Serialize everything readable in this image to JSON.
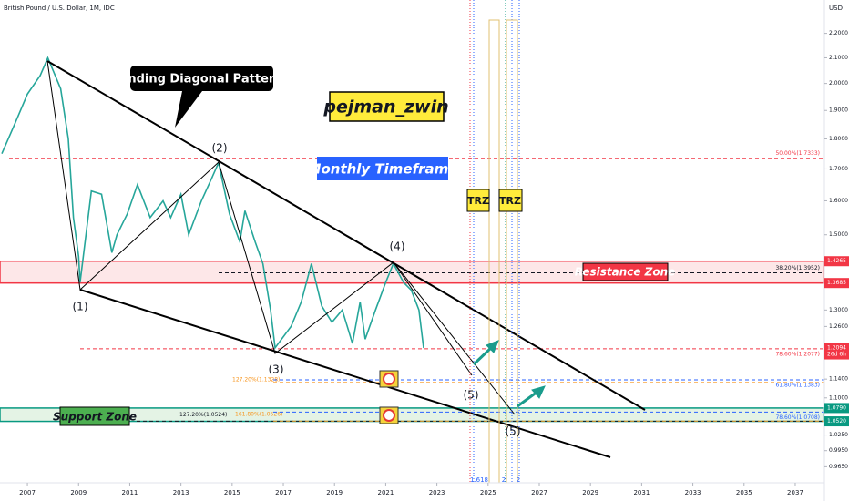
{
  "chart_data": {
    "type": "line",
    "title": "British Pound / U.S. Dollar, 1M, IDC",
    "y_axis_label": "USD",
    "color": "#26a69a",
    "log_scale": true,
    "grid": false,
    "x": [
      2006.0,
      2006.5,
      2007.0,
      2007.5,
      2007.8,
      2008.3,
      2008.6,
      2008.8,
      2009.0,
      2009.06,
      2009.5,
      2009.9,
      2010.3,
      2010.5,
      2010.9,
      2011.3,
      2011.8,
      2012.3,
      2012.6,
      2013.0,
      2013.3,
      2013.8,
      2014.2,
      2014.47,
      2014.9,
      2015.3,
      2015.5,
      2015.9,
      2016.2,
      2016.5,
      2016.68,
      2017.3,
      2017.7,
      2018.1,
      2018.5,
      2018.9,
      2019.3,
      2019.7,
      2020.0,
      2020.2,
      2020.6,
      2021.0,
      2021.3,
      2021.7,
      2022.0,
      2022.3,
      2022.48
    ],
    "values": [
      1.75,
      1.85,
      1.96,
      2.03,
      2.1,
      1.98,
      1.8,
      1.55,
      1.44,
      1.37,
      1.63,
      1.62,
      1.45,
      1.5,
      1.56,
      1.65,
      1.55,
      1.6,
      1.55,
      1.62,
      1.5,
      1.6,
      1.67,
      1.72,
      1.56,
      1.48,
      1.57,
      1.48,
      1.42,
      1.3,
      1.21,
      1.26,
      1.32,
      1.42,
      1.31,
      1.27,
      1.3,
      1.22,
      1.32,
      1.23,
      1.3,
      1.37,
      1.42,
      1.37,
      1.35,
      1.3,
      1.2094
    ],
    "xlim": [
      2005.93,
      2038.14
    ],
    "xticks": [
      2007,
      2009,
      2011,
      2013,
      2015,
      2017,
      2019,
      2021,
      2023,
      2025,
      2027,
      2029,
      2031,
      2033,
      2035,
      2037
    ],
    "ylim": [
      0.936,
      2.344
    ],
    "yticks": [
      {
        "value": 2.2,
        "label": "2.2000"
      },
      {
        "value": 2.1,
        "label": "2.1000"
      },
      {
        "value": 2.0,
        "label": "2.0000"
      },
      {
        "value": 1.9,
        "label": "1.9000"
      },
      {
        "value": 1.8,
        "label": "1.8000"
      },
      {
        "value": 1.7,
        "label": "1.7000"
      },
      {
        "value": 1.6,
        "label": "1.6000"
      },
      {
        "value": 1.5,
        "label": "1.5000"
      },
      {
        "value": 1.3,
        "label": "1.3000"
      },
      {
        "value": 1.26,
        "label": "1.2600"
      },
      {
        "value": 1.14,
        "label": "1.1400"
      },
      {
        "value": 1.1,
        "label": "1.1000"
      },
      {
        "value": 1.025,
        "label": "1.0250"
      },
      {
        "value": 0.995,
        "label": "0.9950"
      },
      {
        "value": 0.965,
        "label": "0.9650"
      }
    ],
    "price_markers": [
      {
        "value": 1.4265,
        "label": "1.4265",
        "color": "#f23645"
      },
      {
        "value": 1.3685,
        "label": "1.3685",
        "color": "#f23645"
      },
      {
        "value": 1.2094,
        "label": "1.2094",
        "color": "#f23645",
        "sublabel": "26d 6h"
      },
      {
        "value": 1.079,
        "label": "1.0790",
        "color": "#089981"
      },
      {
        "value": 1.052,
        "label": "1.0520",
        "color": "#089981"
      }
    ],
    "levels": [
      {
        "value": 1.7333,
        "label": "50.00%(1.7333)",
        "color": "#f23645"
      },
      {
        "value": 1.3952,
        "label": "38.20%(1.3952)",
        "color": "#131722"
      },
      {
        "value": 1.2077,
        "label": "78.60%(1.2077)",
        "color": "#f23645"
      },
      {
        "value": 1.1328,
        "label": "127.20%(1.1328)",
        "color": "#f7931a"
      },
      {
        "value": 1.1383,
        "label": "61.80%(1.1383)",
        "color": "#2962ff"
      },
      {
        "value": 1.0524,
        "label": "127.20%(1.0524)",
        "color": "#131722"
      },
      {
        "value": 1.0526,
        "label": "161.80%(1.0526)",
        "color": "#f7931a"
      },
      {
        "value": 1.0708,
        "label": "78.60%(1.0708)",
        "color": "#2962ff"
      }
    ],
    "annotations": {
      "pattern": "Ending Diagonal Pattern",
      "author": "pejman_zwin",
      "timeframe": "Monthly Timeframe",
      "trz": [
        "TRZ",
        "TRZ"
      ],
      "resistance": "Resistance Zone",
      "support": "Support Zone",
      "waves": [
        "(1)",
        "(2)",
        "(3)",
        "(4)",
        "(5)",
        "(5)"
      ],
      "bottom": [
        "1.618",
        "2",
        "2"
      ]
    }
  }
}
